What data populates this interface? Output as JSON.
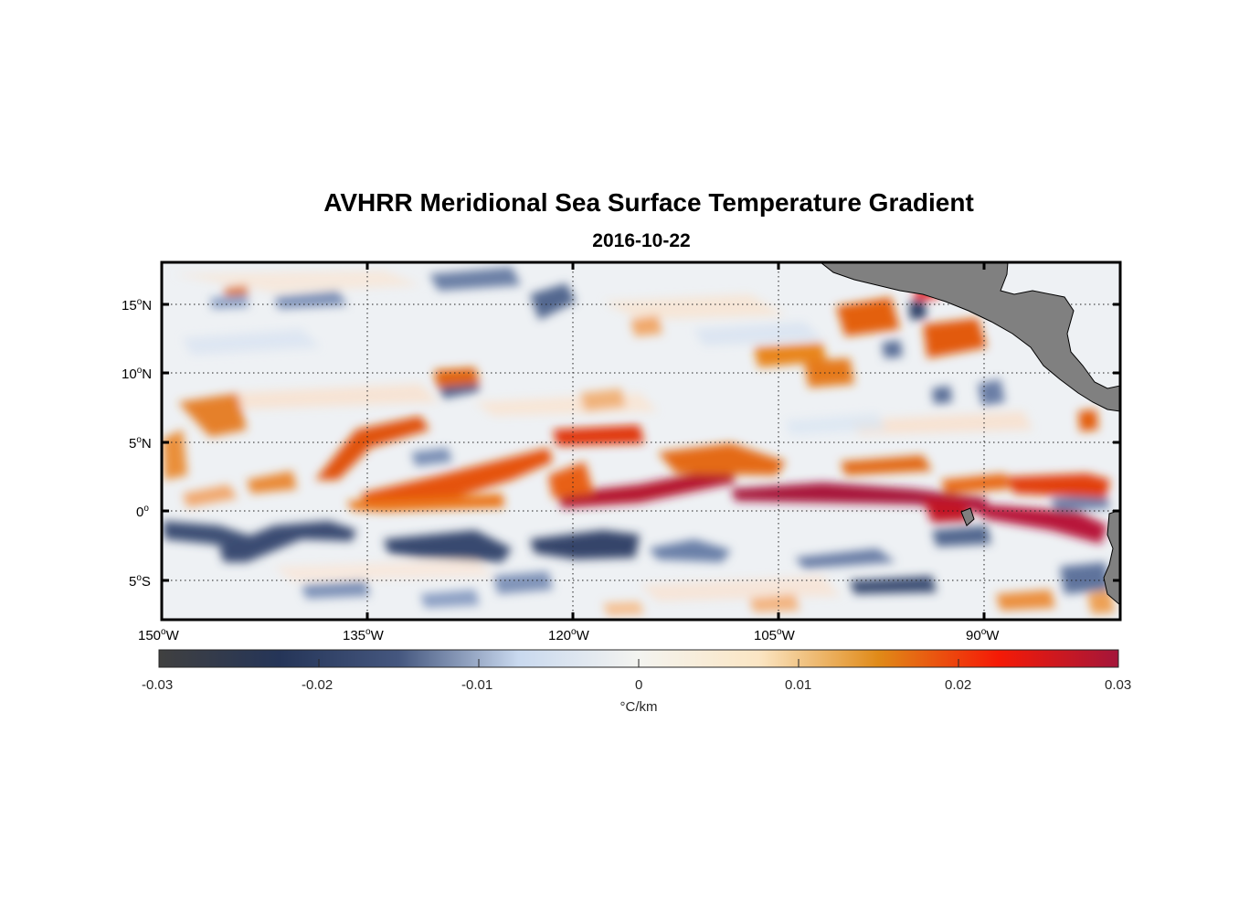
{
  "title": "AVHRR Meridional Sea Surface Temperature Gradient",
  "subtitle": "2016-10-22",
  "map": {
    "projection": "equirectangular",
    "lon_range": [
      -150,
      -80
    ],
    "lat_range": [
      -8,
      18
    ],
    "grid": "dotted",
    "land_color": "#808080",
    "lon_ticks": [
      {
        "value": -150,
        "num": "150",
        "deg": "o",
        "hem": "W"
      },
      {
        "value": -135,
        "num": "135",
        "deg": "o",
        "hem": "W"
      },
      {
        "value": -120,
        "num": "120",
        "deg": "o",
        "hem": "W"
      },
      {
        "value": -105,
        "num": "105",
        "deg": "o",
        "hem": "W"
      },
      {
        "value": -90,
        "num": "90",
        "deg": "o",
        "hem": "W"
      }
    ],
    "lat_ticks": [
      {
        "value": 15,
        "num": "15",
        "deg": "o",
        "hem": "N"
      },
      {
        "value": 10,
        "num": "10",
        "deg": "o",
        "hem": "N"
      },
      {
        "value": 5,
        "num": "5",
        "deg": "o",
        "hem": "N"
      },
      {
        "value": 0,
        "num": "0",
        "deg": "o",
        "hem": ""
      },
      {
        "value": -5,
        "num": "5",
        "deg": "o",
        "hem": "S"
      }
    ]
  },
  "colorbar": {
    "range": [
      -0.03,
      0.03
    ],
    "unit": "°C/km",
    "tick_labels": [
      "-0.03",
      "-0.02",
      "-0.01",
      "0",
      "0.01",
      "0.02",
      "0.03"
    ],
    "colors": [
      "#404040",
      "#253558",
      "#45577f",
      "#c9d9ef",
      "#f4f4f0",
      "#fbe6c4",
      "#e08a18",
      "#f51a06",
      "#a4163a"
    ]
  }
}
